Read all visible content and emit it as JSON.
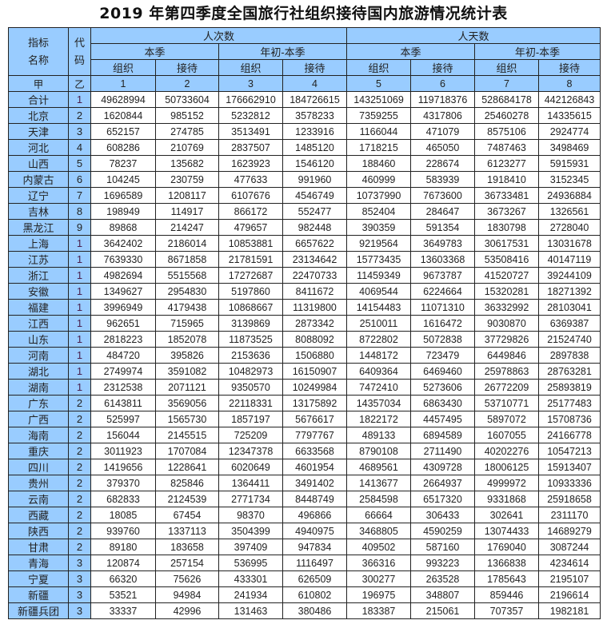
{
  "title": "2019 年第四季度全国旅行社组织接待国内旅游情况统计表",
  "header": {
    "indicator_name": "指标名称",
    "code": "代码",
    "person_times": "人次数",
    "person_days": "人天数",
    "this_quarter": "本季",
    "ytd": "年初-本季",
    "organize": "组织",
    "receive": "接待",
    "index_row": [
      "甲",
      "乙",
      "1",
      "2",
      "3",
      "4",
      "5",
      "6",
      "7",
      "8"
    ]
  },
  "colors": {
    "header_bg": "#99ccff",
    "border": "#222222"
  },
  "rows": [
    {
      "name": "合计",
      "code": "1",
      "values": [
        "49628994",
        "50733604",
        "176662910",
        "184726615",
        "143251069",
        "119718376",
        "528684178",
        "442126843"
      ]
    },
    {
      "name": "北京",
      "code": "2",
      "values": [
        "1620844",
        "985152",
        "5232812",
        "3578233",
        "7359255",
        "4317806",
        "25460278",
        "14335615"
      ]
    },
    {
      "name": "天津",
      "code": "3",
      "values": [
        "652157",
        "274785",
        "3513491",
        "1233916",
        "1166044",
        "471079",
        "8575106",
        "2924774"
      ]
    },
    {
      "name": "河北",
      "code": "4",
      "values": [
        "608286",
        "210769",
        "2837507",
        "1485120",
        "1718215",
        "465050",
        "7487463",
        "3498469"
      ]
    },
    {
      "name": "山西",
      "code": "5",
      "values": [
        "78237",
        "135682",
        "1623923",
        "1546120",
        "188460",
        "228674",
        "6123277",
        "5915931"
      ]
    },
    {
      "name": "内蒙古",
      "code": "6",
      "values": [
        "104245",
        "230759",
        "477633",
        "991960",
        "460999",
        "583939",
        "1918410",
        "3152345"
      ]
    },
    {
      "name": "辽宁",
      "code": "7",
      "values": [
        "1696589",
        "1208117",
        "6107676",
        "4546749",
        "10737990",
        "7673600",
        "36733481",
        "24936884"
      ]
    },
    {
      "name": "吉林",
      "code": "8",
      "values": [
        "198949",
        "114917",
        "866172",
        "552477",
        "852404",
        "284647",
        "3673267",
        "1326561"
      ]
    },
    {
      "name": "黑龙江",
      "code": "9",
      "values": [
        "89868",
        "214247",
        "479657",
        "982448",
        "390359",
        "591354",
        "1830798",
        "2728040"
      ]
    },
    {
      "name": "上海",
      "code": "1",
      "values": [
        "3642402",
        "2186014",
        "10853881",
        "6657622",
        "9219564",
        "3649783",
        "30617531",
        "13031678"
      ]
    },
    {
      "name": "江苏",
      "code": "1",
      "values": [
        "7639330",
        "8671858",
        "21781591",
        "23134642",
        "15773435",
        "13603368",
        "53508416",
        "40147119"
      ]
    },
    {
      "name": "浙江",
      "code": "1",
      "values": [
        "4982694",
        "5515568",
        "17272687",
        "22470733",
        "11459349",
        "9673787",
        "41520727",
        "39244109"
      ]
    },
    {
      "name": "安徽",
      "code": "1",
      "values": [
        "1349627",
        "2954830",
        "5197860",
        "8411672",
        "4069544",
        "6224664",
        "15320281",
        "18271392"
      ]
    },
    {
      "name": "福建",
      "code": "1",
      "values": [
        "3996949",
        "4179438",
        "10868667",
        "11319800",
        "14154483",
        "11071310",
        "36332992",
        "28103041"
      ]
    },
    {
      "name": "江西",
      "code": "1",
      "values": [
        "962651",
        "715965",
        "3139869",
        "2873342",
        "2510011",
        "1616472",
        "9030870",
        "6369387"
      ]
    },
    {
      "name": "山东",
      "code": "1",
      "values": [
        "2818223",
        "1852078",
        "11873525",
        "8088092",
        "8722802",
        "5072838",
        "37729826",
        "21524740"
      ]
    },
    {
      "name": "河南",
      "code": "1",
      "values": [
        "484720",
        "395826",
        "2153636",
        "1506880",
        "1448172",
        "723479",
        "6449846",
        "2897838"
      ]
    },
    {
      "name": "湖北",
      "code": "1",
      "values": [
        "2749974",
        "3591082",
        "10482973",
        "16150907",
        "6409364",
        "6469460",
        "25978863",
        "28763281"
      ]
    },
    {
      "name": "湖南",
      "code": "1",
      "values": [
        "2312538",
        "2071121",
        "9350570",
        "10249984",
        "7472410",
        "5273606",
        "26772209",
        "25893819"
      ]
    },
    {
      "name": "广东",
      "code": "2",
      "values": [
        "6143811",
        "3569056",
        "22118331",
        "13175892",
        "14357034",
        "6863430",
        "53710771",
        "25177483"
      ]
    },
    {
      "name": "广西",
      "code": "2",
      "values": [
        "525997",
        "1565730",
        "1857197",
        "5676617",
        "1822172",
        "4457495",
        "5897072",
        "15708736"
      ]
    },
    {
      "name": "海南",
      "code": "2",
      "values": [
        "156044",
        "2145515",
        "725209",
        "7797767",
        "489133",
        "6894589",
        "1607055",
        "24166778"
      ]
    },
    {
      "name": "重庆",
      "code": "2",
      "values": [
        "3011923",
        "1707084",
        "12347378",
        "6633568",
        "8790108",
        "2711490",
        "40202276",
        "10547213"
      ]
    },
    {
      "name": "四川",
      "code": "2",
      "values": [
        "1419656",
        "1228641",
        "6020649",
        "4601954",
        "4689561",
        "4309728",
        "18006125",
        "15913407"
      ]
    },
    {
      "name": "贵州",
      "code": "2",
      "values": [
        "379370",
        "825846",
        "1364411",
        "3491402",
        "1413677",
        "2664937",
        "4999972",
        "10933336"
      ]
    },
    {
      "name": "云南",
      "code": "2",
      "values": [
        "682833",
        "2124539",
        "2771734",
        "8448749",
        "2584598",
        "6517320",
        "9331868",
        "25918658"
      ]
    },
    {
      "name": "西藏",
      "code": "2",
      "values": [
        "18085",
        "67454",
        "98370",
        "496866",
        "66664",
        "306433",
        "302641",
        "2311170"
      ]
    },
    {
      "name": "陕西",
      "code": "2",
      "values": [
        "939760",
        "1337113",
        "3504399",
        "4940975",
        "3468805",
        "4590259",
        "13074433",
        "14689279"
      ]
    },
    {
      "name": "甘肃",
      "code": "2",
      "values": [
        "89180",
        "183658",
        "397409",
        "947834",
        "409502",
        "587160",
        "1769040",
        "3087244"
      ]
    },
    {
      "name": "青海",
      "code": "3",
      "values": [
        "120874",
        "257154",
        "536995",
        "1116497",
        "366316",
        "993223",
        "1366838",
        "4234614"
      ]
    },
    {
      "name": "宁夏",
      "code": "3",
      "values": [
        "66320",
        "75626",
        "433301",
        "626509",
        "300277",
        "263528",
        "1785643",
        "2195107"
      ]
    },
    {
      "name": "新疆",
      "code": "3",
      "values": [
        "53521",
        "94984",
        "241934",
        "610802",
        "196975",
        "348807",
        "859446",
        "2196614"
      ]
    },
    {
      "name": "新疆兵团",
      "code": "3",
      "values": [
        "33337",
        "42996",
        "131463",
        "380486",
        "183387",
        "215061",
        "707357",
        "1982181"
      ]
    }
  ]
}
